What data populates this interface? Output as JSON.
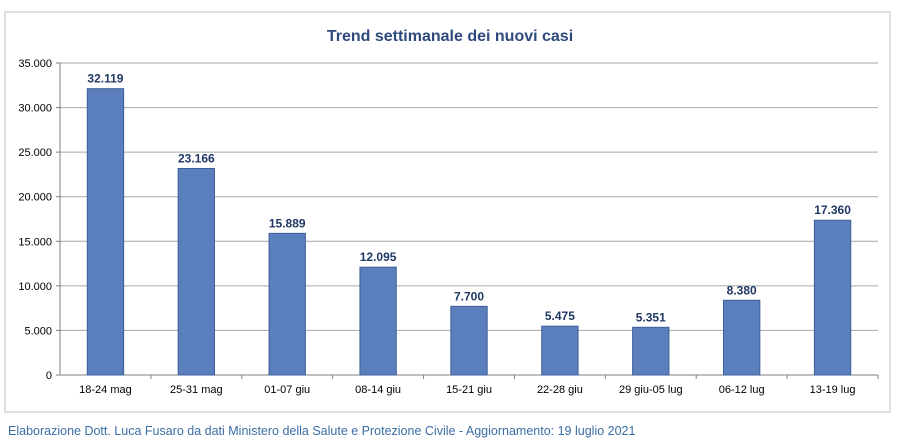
{
  "chart_data": {
    "type": "bar",
    "title": "Trend settimanale dei nuovi casi",
    "categories": [
      "18-24 mag",
      "25-31 mag",
      "01-07 giu",
      "08-14 giu",
      "15-21 giu",
      "22-28 giu",
      "29 giu-05 lug",
      "06-12 lug",
      "13-19 lug"
    ],
    "values": [
      32119,
      23166,
      15889,
      12095,
      7700,
      5475,
      5351,
      8380,
      17360
    ],
    "value_labels": [
      "32.119",
      "23.166",
      "15.889",
      "12.095",
      "7.700",
      "5.475",
      "5.351",
      "8.380",
      "17.360"
    ],
    "y_ticks": [
      0,
      5000,
      10000,
      15000,
      20000,
      25000,
      30000,
      35000
    ],
    "y_tick_labels": [
      "0",
      "5.000",
      "10.000",
      "15.000",
      "20.000",
      "25.000",
      "30.000",
      "35.000"
    ],
    "ylim": [
      0,
      35000
    ],
    "xlabel": "",
    "ylabel": "",
    "grid": true,
    "legend": "none",
    "colors": {
      "bar_fill": "#5b7fbd",
      "bar_stroke": "#3e5f99",
      "grid": "#a6a6a6",
      "title": "#2e4a7d",
      "data_label": "#1f3864",
      "frame": "#bfbfbf"
    }
  },
  "footer": {
    "caption": "Elaborazione Dott. Luca Fusaro da dati Ministero della Salute e Protezione Civile - Aggiornamento: 19 luglio 2021"
  }
}
